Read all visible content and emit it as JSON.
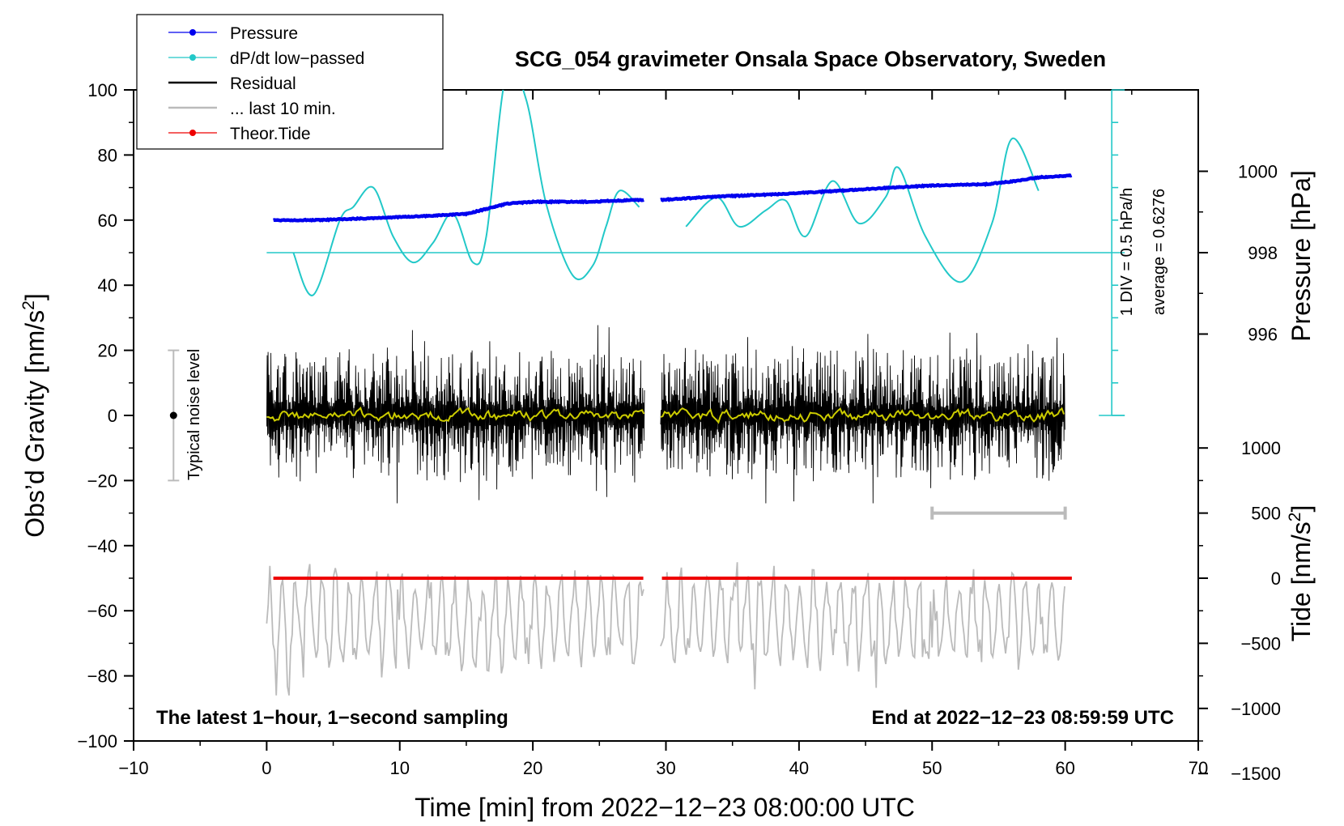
{
  "chart_data": {
    "type": "line",
    "title": "SCG_054 gravimeter Onsala Space Observatory, Sweden",
    "xlabel": "Time [min] from 2022−12−23 08:00:00 UTC",
    "ylabel_left_prefix": "Obs’d Gravity [nm/s",
    "ylabel_left_sup": "2",
    "ylabel_left_suffix": "]",
    "ylabel_right_pressure": "Pressure [hPa]",
    "ylabel_right_tide_prefix": "Tide [nm/s",
    "ylabel_right_tide_sup": "2",
    "ylabel_right_tide_suffix": "]",
    "xlim": [
      -10,
      70
    ],
    "ylim": [
      -100,
      100
    ],
    "x_ticks": [
      "−10",
      "0",
      "10",
      "20",
      "30",
      "40",
      "50",
      "60",
      "70"
    ],
    "x_tick_values": [
      -10,
      0,
      10,
      20,
      30,
      40,
      50,
      60,
      70
    ],
    "y_ticks": [
      "100",
      "80",
      "60",
      "40",
      "20",
      "0",
      "−20",
      "−40",
      "−60",
      "−80",
      "−100"
    ],
    "y_tick_values": [
      100,
      80,
      60,
      40,
      20,
      0,
      -20,
      -40,
      -60,
      -80,
      -100
    ],
    "pressure_axis": {
      "ticks": [
        "1000",
        "998",
        "996"
      ],
      "tick_values": [
        1000,
        998,
        996
      ],
      "map": {
        "hpa_at_gravity_50": 998,
        "gravity_units_per_hpa": 12.5
      }
    },
    "tide_axis": {
      "ticks": [
        "1000",
        "500",
        "0",
        "−500",
        "−1000",
        "−1500"
      ],
      "tick_values": [
        1000,
        500,
        0,
        -500,
        -1000,
        -1500
      ],
      "map": {
        "tide_at_gravity_minus_50": 0,
        "tide_units_per_gravity_unit": 25
      }
    },
    "legend": {
      "placement": "top-left",
      "entries": [
        {
          "label": "Pressure",
          "color": "#0000ee",
          "marker": "dot"
        },
        {
          "label": "dP/dt low−passed",
          "color": "#22c8c8",
          "marker": "dot"
        },
        {
          "label": "Residual",
          "color": "#000000",
          "marker": "none"
        },
        {
          "label": "... last 10 min.",
          "color": "#bbbbbb",
          "marker": "none"
        },
        {
          "label": "Theor.Tide",
          "color": "#ee0000",
          "marker": "dot"
        }
      ]
    },
    "annotations": {
      "bottom_left": "The latest 1−hour, 1−second sampling",
      "bottom_right": "End at 2022−12−23 08:59:59 UTC",
      "noise_label": "Typical noise level",
      "div_label": "1 DIV = 0.5 hPa/h",
      "average_label": "average = 0.6276"
    },
    "noise_bar": {
      "x": -7,
      "center": 0,
      "low": -20,
      "high": 20
    },
    "gap_minutes": [
      28.4,
      29.6
    ],
    "series": [
      {
        "name": "Pressure",
        "unit": "hPa",
        "color": "#0000ee",
        "x": [
          0.5,
          4,
          8,
          12,
          15,
          18,
          20,
          24,
          28.3,
          29.7,
          34,
          38,
          42,
          46,
          50,
          54,
          56,
          58,
          60.5
        ],
        "y": [
          998.8,
          998.8,
          998.85,
          998.9,
          998.95,
          999.2,
          999.25,
          999.25,
          999.3,
          999.3,
          999.38,
          999.43,
          999.5,
          999.58,
          999.65,
          999.68,
          999.75,
          999.85,
          999.9
        ]
      },
      {
        "name": "dP/dt low−passed",
        "unit": "nm/s2 equivalent",
        "color": "#22c8c8",
        "baseline": 50,
        "x": [
          2,
          3.5,
          5.5,
          6.5,
          8,
          9.5,
          11,
          12.5,
          14,
          15.5,
          16.5,
          18,
          19.5,
          21,
          23,
          24.5,
          25.5,
          26.5,
          28,
          31.5,
          33.8,
          35.5,
          37.5,
          39,
          40.5,
          42.5,
          44.5,
          46.5,
          47.5,
          49.5,
          52.2,
          54.5,
          56,
          58
        ],
        "y": [
          50,
          37,
          60,
          64,
          70,
          55,
          47,
          53,
          62,
          47,
          55,
          105,
          97,
          65,
          43,
          46,
          58,
          69,
          64,
          58,
          67,
          58,
          63,
          66,
          55,
          72,
          59,
          67,
          76,
          55,
          41,
          59,
          85,
          69
        ]
      },
      {
        "name": "Residual",
        "color": "#000000",
        "x_range": [
          0,
          60
        ],
        "envelope": [
          -27,
          29
        ]
      },
      {
        "name": "Residual smoothed",
        "color": "#cccc00",
        "x_range": [
          0,
          60
        ],
        "envelope": [
          -5,
          5
        ]
      },
      {
        "name": "... last 10 min.",
        "color": "#bbbbbb",
        "x_range": [
          0,
          60
        ],
        "envelope": [
          -85,
          -35
        ]
      },
      {
        "name": "Theor.Tide",
        "unit": "nm/s2",
        "color": "#ee0000",
        "x": [
          0.5,
          28.3,
          29.7,
          60.5
        ],
        "y": [
          0,
          0,
          0,
          0
        ]
      }
    ],
    "scale_bar_10min": {
      "x_start": 50,
      "x_end": 60,
      "tide_value": 500
    },
    "grid": false
  }
}
